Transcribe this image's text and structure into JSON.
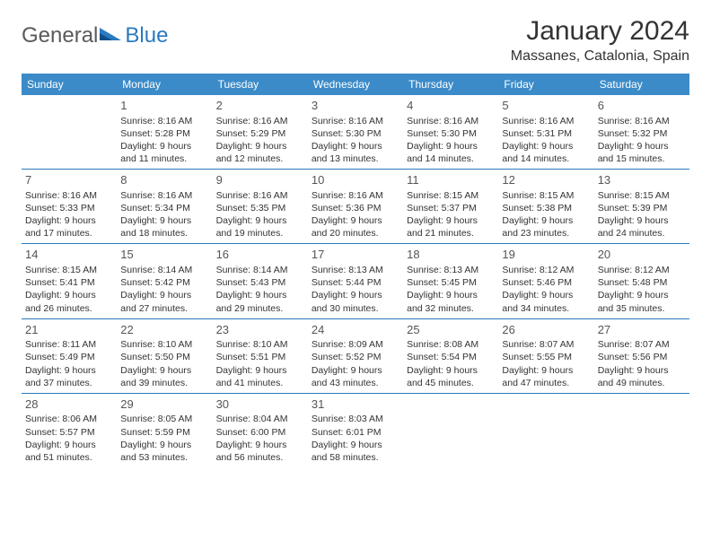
{
  "colors": {
    "header_bg": "#3b8bc8",
    "header_text": "#ffffff",
    "rule": "#2a7ac0",
    "body_text": "#333333",
    "daynum": "#555555",
    "logo_gray": "#5a5a5a",
    "logo_blue": "#2a7ac0",
    "background": "#ffffff"
  },
  "logo": {
    "part1": "General",
    "part2": "Blue"
  },
  "title": "January 2024",
  "location": "Massanes, Catalonia, Spain",
  "day_headers": [
    "Sunday",
    "Monday",
    "Tuesday",
    "Wednesday",
    "Thursday",
    "Friday",
    "Saturday"
  ],
  "grid": [
    [
      null,
      {
        "n": "1",
        "sr": "Sunrise: 8:16 AM",
        "ss": "Sunset: 5:28 PM",
        "d1": "Daylight: 9 hours",
        "d2": "and 11 minutes."
      },
      {
        "n": "2",
        "sr": "Sunrise: 8:16 AM",
        "ss": "Sunset: 5:29 PM",
        "d1": "Daylight: 9 hours",
        "d2": "and 12 minutes."
      },
      {
        "n": "3",
        "sr": "Sunrise: 8:16 AM",
        "ss": "Sunset: 5:30 PM",
        "d1": "Daylight: 9 hours",
        "d2": "and 13 minutes."
      },
      {
        "n": "4",
        "sr": "Sunrise: 8:16 AM",
        "ss": "Sunset: 5:30 PM",
        "d1": "Daylight: 9 hours",
        "d2": "and 14 minutes."
      },
      {
        "n": "5",
        "sr": "Sunrise: 8:16 AM",
        "ss": "Sunset: 5:31 PM",
        "d1": "Daylight: 9 hours",
        "d2": "and 14 minutes."
      },
      {
        "n": "6",
        "sr": "Sunrise: 8:16 AM",
        "ss": "Sunset: 5:32 PM",
        "d1": "Daylight: 9 hours",
        "d2": "and 15 minutes."
      }
    ],
    [
      {
        "n": "7",
        "sr": "Sunrise: 8:16 AM",
        "ss": "Sunset: 5:33 PM",
        "d1": "Daylight: 9 hours",
        "d2": "and 17 minutes."
      },
      {
        "n": "8",
        "sr": "Sunrise: 8:16 AM",
        "ss": "Sunset: 5:34 PM",
        "d1": "Daylight: 9 hours",
        "d2": "and 18 minutes."
      },
      {
        "n": "9",
        "sr": "Sunrise: 8:16 AM",
        "ss": "Sunset: 5:35 PM",
        "d1": "Daylight: 9 hours",
        "d2": "and 19 minutes."
      },
      {
        "n": "10",
        "sr": "Sunrise: 8:16 AM",
        "ss": "Sunset: 5:36 PM",
        "d1": "Daylight: 9 hours",
        "d2": "and 20 minutes."
      },
      {
        "n": "11",
        "sr": "Sunrise: 8:15 AM",
        "ss": "Sunset: 5:37 PM",
        "d1": "Daylight: 9 hours",
        "d2": "and 21 minutes."
      },
      {
        "n": "12",
        "sr": "Sunrise: 8:15 AM",
        "ss": "Sunset: 5:38 PM",
        "d1": "Daylight: 9 hours",
        "d2": "and 23 minutes."
      },
      {
        "n": "13",
        "sr": "Sunrise: 8:15 AM",
        "ss": "Sunset: 5:39 PM",
        "d1": "Daylight: 9 hours",
        "d2": "and 24 minutes."
      }
    ],
    [
      {
        "n": "14",
        "sr": "Sunrise: 8:15 AM",
        "ss": "Sunset: 5:41 PM",
        "d1": "Daylight: 9 hours",
        "d2": "and 26 minutes."
      },
      {
        "n": "15",
        "sr": "Sunrise: 8:14 AM",
        "ss": "Sunset: 5:42 PM",
        "d1": "Daylight: 9 hours",
        "d2": "and 27 minutes."
      },
      {
        "n": "16",
        "sr": "Sunrise: 8:14 AM",
        "ss": "Sunset: 5:43 PM",
        "d1": "Daylight: 9 hours",
        "d2": "and 29 minutes."
      },
      {
        "n": "17",
        "sr": "Sunrise: 8:13 AM",
        "ss": "Sunset: 5:44 PM",
        "d1": "Daylight: 9 hours",
        "d2": "and 30 minutes."
      },
      {
        "n": "18",
        "sr": "Sunrise: 8:13 AM",
        "ss": "Sunset: 5:45 PM",
        "d1": "Daylight: 9 hours",
        "d2": "and 32 minutes."
      },
      {
        "n": "19",
        "sr": "Sunrise: 8:12 AM",
        "ss": "Sunset: 5:46 PM",
        "d1": "Daylight: 9 hours",
        "d2": "and 34 minutes."
      },
      {
        "n": "20",
        "sr": "Sunrise: 8:12 AM",
        "ss": "Sunset: 5:48 PM",
        "d1": "Daylight: 9 hours",
        "d2": "and 35 minutes."
      }
    ],
    [
      {
        "n": "21",
        "sr": "Sunrise: 8:11 AM",
        "ss": "Sunset: 5:49 PM",
        "d1": "Daylight: 9 hours",
        "d2": "and 37 minutes."
      },
      {
        "n": "22",
        "sr": "Sunrise: 8:10 AM",
        "ss": "Sunset: 5:50 PM",
        "d1": "Daylight: 9 hours",
        "d2": "and 39 minutes."
      },
      {
        "n": "23",
        "sr": "Sunrise: 8:10 AM",
        "ss": "Sunset: 5:51 PM",
        "d1": "Daylight: 9 hours",
        "d2": "and 41 minutes."
      },
      {
        "n": "24",
        "sr": "Sunrise: 8:09 AM",
        "ss": "Sunset: 5:52 PM",
        "d1": "Daylight: 9 hours",
        "d2": "and 43 minutes."
      },
      {
        "n": "25",
        "sr": "Sunrise: 8:08 AM",
        "ss": "Sunset: 5:54 PM",
        "d1": "Daylight: 9 hours",
        "d2": "and 45 minutes."
      },
      {
        "n": "26",
        "sr": "Sunrise: 8:07 AM",
        "ss": "Sunset: 5:55 PM",
        "d1": "Daylight: 9 hours",
        "d2": "and 47 minutes."
      },
      {
        "n": "27",
        "sr": "Sunrise: 8:07 AM",
        "ss": "Sunset: 5:56 PM",
        "d1": "Daylight: 9 hours",
        "d2": "and 49 minutes."
      }
    ],
    [
      {
        "n": "28",
        "sr": "Sunrise: 8:06 AM",
        "ss": "Sunset: 5:57 PM",
        "d1": "Daylight: 9 hours",
        "d2": "and 51 minutes."
      },
      {
        "n": "29",
        "sr": "Sunrise: 8:05 AM",
        "ss": "Sunset: 5:59 PM",
        "d1": "Daylight: 9 hours",
        "d2": "and 53 minutes."
      },
      {
        "n": "30",
        "sr": "Sunrise: 8:04 AM",
        "ss": "Sunset: 6:00 PM",
        "d1": "Daylight: 9 hours",
        "d2": "and 56 minutes."
      },
      {
        "n": "31",
        "sr": "Sunrise: 8:03 AM",
        "ss": "Sunset: 6:01 PM",
        "d1": "Daylight: 9 hours",
        "d2": "and 58 minutes."
      },
      null,
      null,
      null
    ]
  ]
}
